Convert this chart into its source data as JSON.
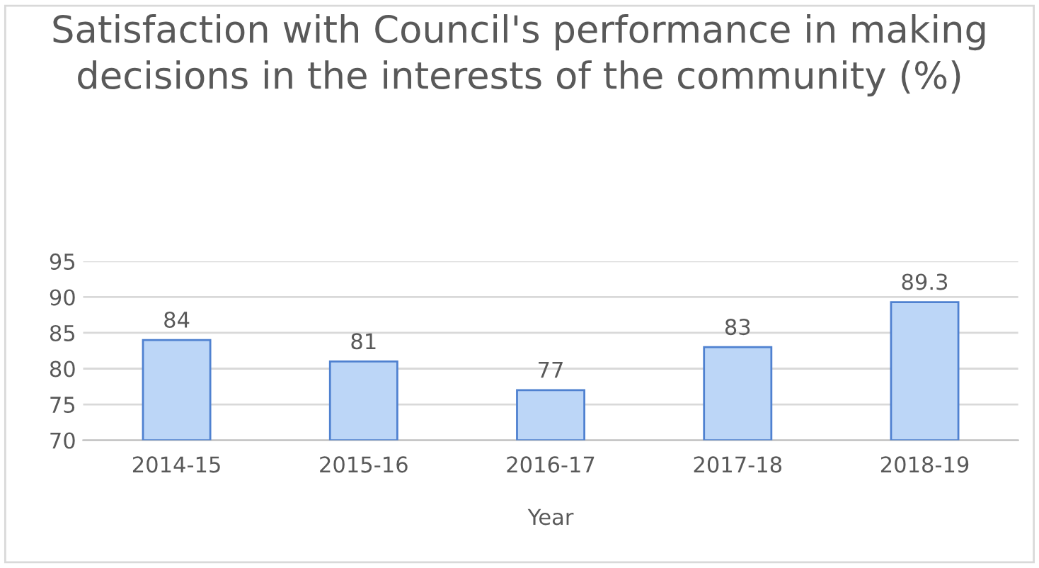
{
  "chart_data": {
    "type": "bar",
    "title": "Satisfaction with Council's performance in making decisions in the interests of the community (%)",
    "xlabel": "Year",
    "categories": [
      "2014-15",
      "2015-16",
      "2016-17",
      "2017-18",
      "2018-19"
    ],
    "values": [
      84,
      81,
      77,
      83,
      89.3
    ],
    "color": "#bcd6f7",
    "ylim": [
      70,
      95
    ],
    "yticks": [
      70,
      75,
      80,
      85,
      90,
      95
    ],
    "grid": "y",
    "data_labels": true
  }
}
